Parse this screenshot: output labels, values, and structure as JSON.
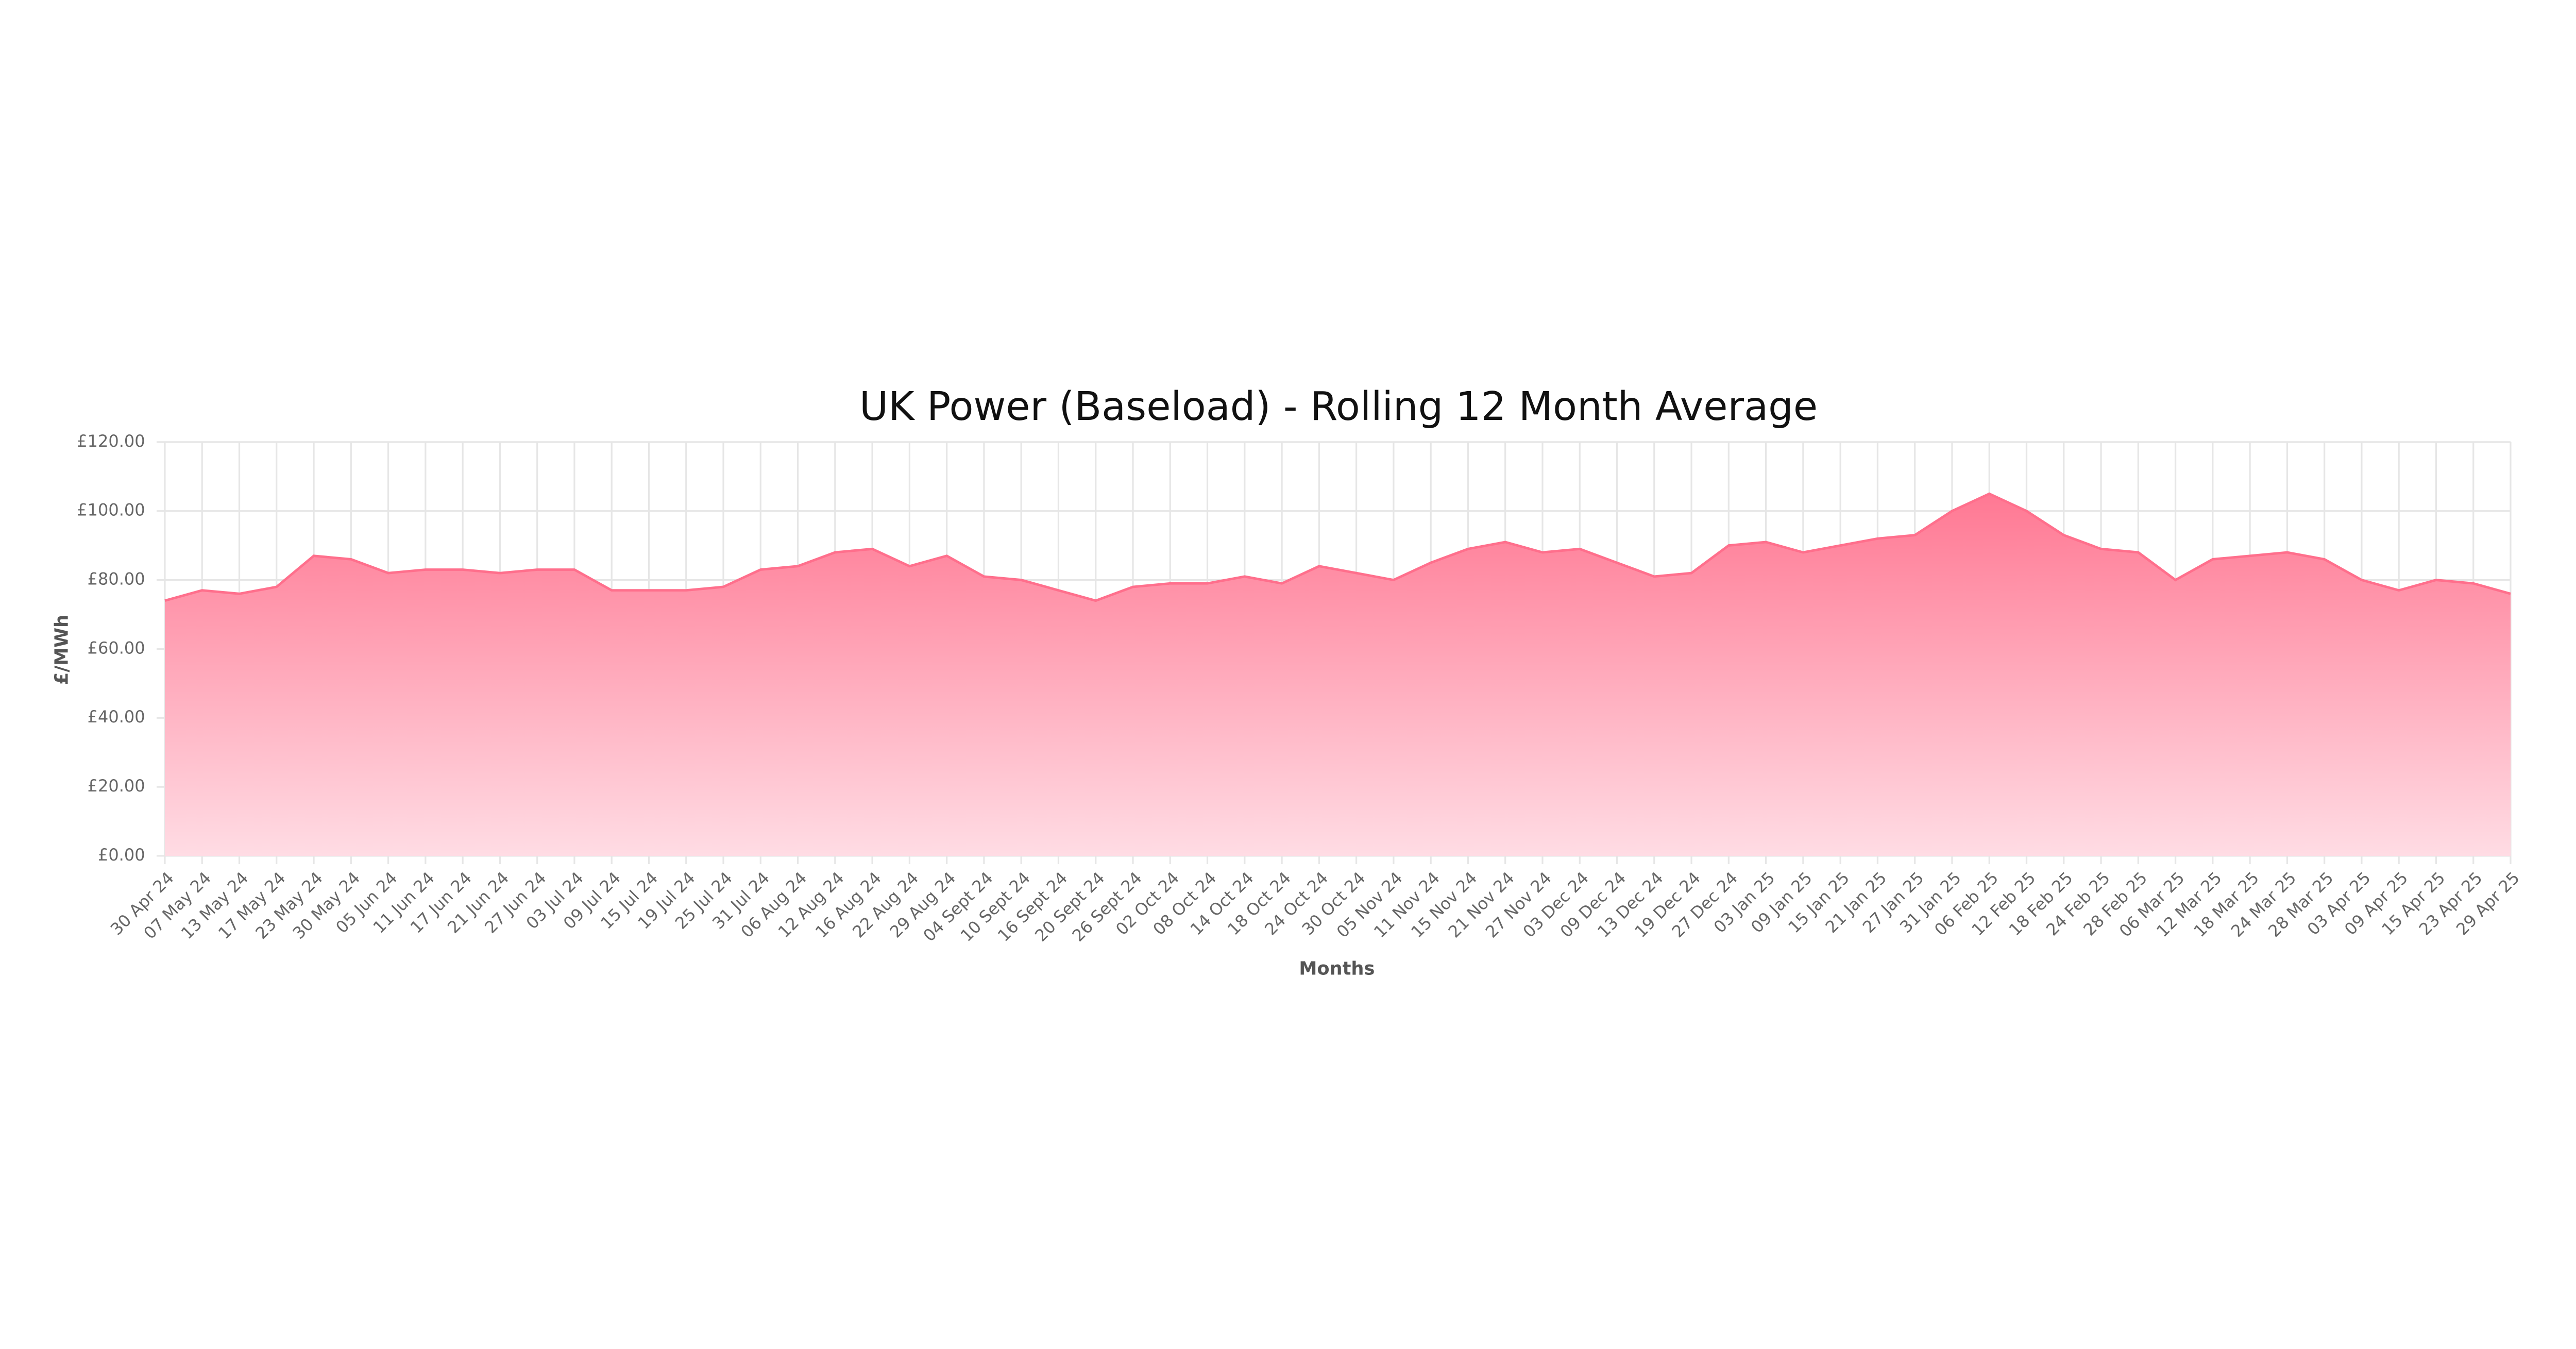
{
  "chart_data": {
    "type": "area",
    "title": "UK Power (Baseload) - Rolling 12 Month Average",
    "x_label": "Months",
    "y_label": "£/MWh",
    "categories": [
      "30 Apr 24",
      "07 May 24",
      "13 May 24",
      "17 May 24",
      "23 May 24",
      "30 May 24",
      "05 Jun 24",
      "11 Jun 24",
      "17 Jun 24",
      "21 Jun 24",
      "27 Jun 24",
      "03 Jul 24",
      "09 Jul 24",
      "15 Jul 24",
      "19 Jul 24",
      "25 Jul 24",
      "31 Jul 24",
      "06 Aug 24",
      "12 Aug 24",
      "16 Aug 24",
      "22 Aug 24",
      "29 Aug 24",
      "04 Sept 24",
      "10 Sept 24",
      "16 Sept 24",
      "20 Sept 24",
      "26 Sept 24",
      "02 Oct 24",
      "08 Oct 24",
      "14 Oct 24",
      "18 Oct 24",
      "24 Oct 24",
      "30 Oct 24",
      "05 Nov 24",
      "11 Nov 24",
      "15 Nov 24",
      "21 Nov 24",
      "27 Nov 24",
      "03 Dec 24",
      "09 Dec 24",
      "13 Dec 24",
      "19 Dec 24",
      "27 Dec 24",
      "03 Jan 25",
      "09 Jan 25",
      "15 Jan 25",
      "21 Jan 25",
      "27 Jan 25",
      "31 Jan 25",
      "06 Feb 25",
      "12 Feb 25",
      "18 Feb 25",
      "24 Feb 25",
      "28 Feb 25",
      "06 Mar 25",
      "12 Mar 25",
      "18 Mar 25",
      "24 Mar 25",
      "28 Mar 25",
      "03 Apr 25",
      "09 Apr 25",
      "15 Apr 25",
      "23 Apr 25",
      "29 Apr 25"
    ],
    "values": [
      74,
      77,
      76,
      78,
      87,
      86,
      82,
      83,
      83,
      82,
      83,
      83,
      77,
      77,
      77,
      78,
      83,
      84,
      88,
      89,
      84,
      87,
      81,
      80,
      77,
      74,
      78,
      79,
      79,
      81,
      79,
      84,
      82,
      80,
      85,
      89,
      91,
      88,
      89,
      85,
      81,
      82,
      90,
      91,
      88,
      90,
      92,
      93,
      100,
      105,
      100,
      93,
      89,
      88,
      80,
      86,
      87,
      88,
      86,
      80,
      77,
      80,
      79,
      76
    ],
    "color": "#ff6f8c",
    "fill_color": "#ff7893",
    "ylim": [
      0,
      120
    ],
    "yticks": [
      {
        "value": 0,
        "label": "£0.00"
      },
      {
        "value": 20,
        "label": "£20.00"
      },
      {
        "value": 40,
        "label": "£40.00"
      },
      {
        "value": 60,
        "label": "£60.00"
      },
      {
        "value": 80,
        "label": "£80.00"
      },
      {
        "value": 100,
        "label": "£100.00"
      },
      {
        "value": 120,
        "label": "£120.00"
      }
    ],
    "grid": true
  }
}
